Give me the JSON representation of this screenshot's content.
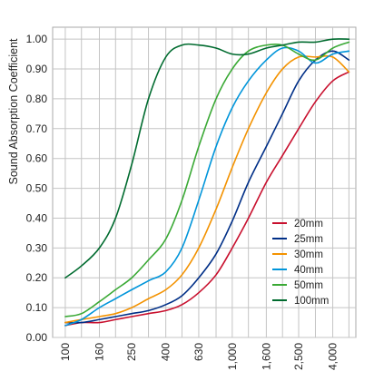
{
  "chart_data": {
    "type": "line",
    "title": "",
    "xlabel": "",
    "ylabel": "Sound Absorption Coefficient",
    "x_scale": "log",
    "x_ticks": [
      {
        "value": 100,
        "label": "100"
      },
      {
        "value": 160,
        "label": "160"
      },
      {
        "value": 250,
        "label": "250"
      },
      {
        "value": 400,
        "label": "400"
      },
      {
        "value": 630,
        "label": "630"
      },
      {
        "value": 1000,
        "label": "1,000"
      },
      {
        "value": 1600,
        "label": "1,600"
      },
      {
        "value": 2500,
        "label": "2,500"
      },
      {
        "value": 4000,
        "label": "4,000"
      }
    ],
    "y_ticks": [
      {
        "value": 0.0,
        "label": "0.00"
      },
      {
        "value": 0.1,
        "label": "0.10"
      },
      {
        "value": 0.2,
        "label": "0.20"
      },
      {
        "value": 0.3,
        "label": "0.30"
      },
      {
        "value": 0.4,
        "label": "0.40"
      },
      {
        "value": 0.5,
        "label": "0.50"
      },
      {
        "value": 0.6,
        "label": "0.60"
      },
      {
        "value": 0.7,
        "label": "0.70"
      },
      {
        "value": 0.8,
        "label": "0.80"
      },
      {
        "value": 0.9,
        "label": "0.90"
      },
      {
        "value": 1.0,
        "label": "1.00"
      }
    ],
    "ylim": [
      0,
      1.04
    ],
    "xlim": [
      84,
      5500
    ],
    "grid": true,
    "legend_position": "lower-right",
    "x": [
      100,
      125,
      160,
      200,
      250,
      315,
      400,
      500,
      630,
      800,
      1000,
      1250,
      1600,
      2000,
      2500,
      3150,
      4000,
      5000
    ],
    "series": [
      {
        "name": "20mm",
        "color": "#c8102e",
        "values": [
          0.04,
          0.05,
          0.05,
          0.06,
          0.07,
          0.08,
          0.09,
          0.11,
          0.15,
          0.21,
          0.3,
          0.4,
          0.52,
          0.61,
          0.7,
          0.79,
          0.86,
          0.89
        ]
      },
      {
        "name": "25mm",
        "color": "#002f87",
        "values": [
          0.05,
          0.05,
          0.06,
          0.07,
          0.08,
          0.09,
          0.11,
          0.14,
          0.2,
          0.28,
          0.39,
          0.52,
          0.64,
          0.75,
          0.86,
          0.93,
          0.96,
          0.93
        ]
      },
      {
        "name": "30mm",
        "color": "#f39200",
        "values": [
          0.05,
          0.06,
          0.07,
          0.08,
          0.1,
          0.13,
          0.16,
          0.21,
          0.3,
          0.43,
          0.57,
          0.7,
          0.82,
          0.9,
          0.94,
          0.94,
          0.94,
          0.89
        ]
      },
      {
        "name": "40mm",
        "color": "#0095da",
        "values": [
          0.04,
          0.06,
          0.1,
          0.13,
          0.16,
          0.19,
          0.22,
          0.3,
          0.46,
          0.64,
          0.77,
          0.86,
          0.93,
          0.97,
          0.96,
          0.92,
          0.95,
          0.96
        ]
      },
      {
        "name": "50mm",
        "color": "#3aa935",
        "values": [
          0.07,
          0.08,
          0.12,
          0.16,
          0.2,
          0.26,
          0.33,
          0.46,
          0.64,
          0.8,
          0.9,
          0.96,
          0.98,
          0.98,
          0.95,
          0.93,
          0.97,
          0.99
        ]
      },
      {
        "name": "100mm",
        "color": "#006b2f",
        "values": [
          0.2,
          0.24,
          0.3,
          0.4,
          0.58,
          0.8,
          0.94,
          0.98,
          0.98,
          0.97,
          0.95,
          0.95,
          0.97,
          0.98,
          0.99,
          0.99,
          1.0,
          1.0
        ]
      }
    ]
  }
}
